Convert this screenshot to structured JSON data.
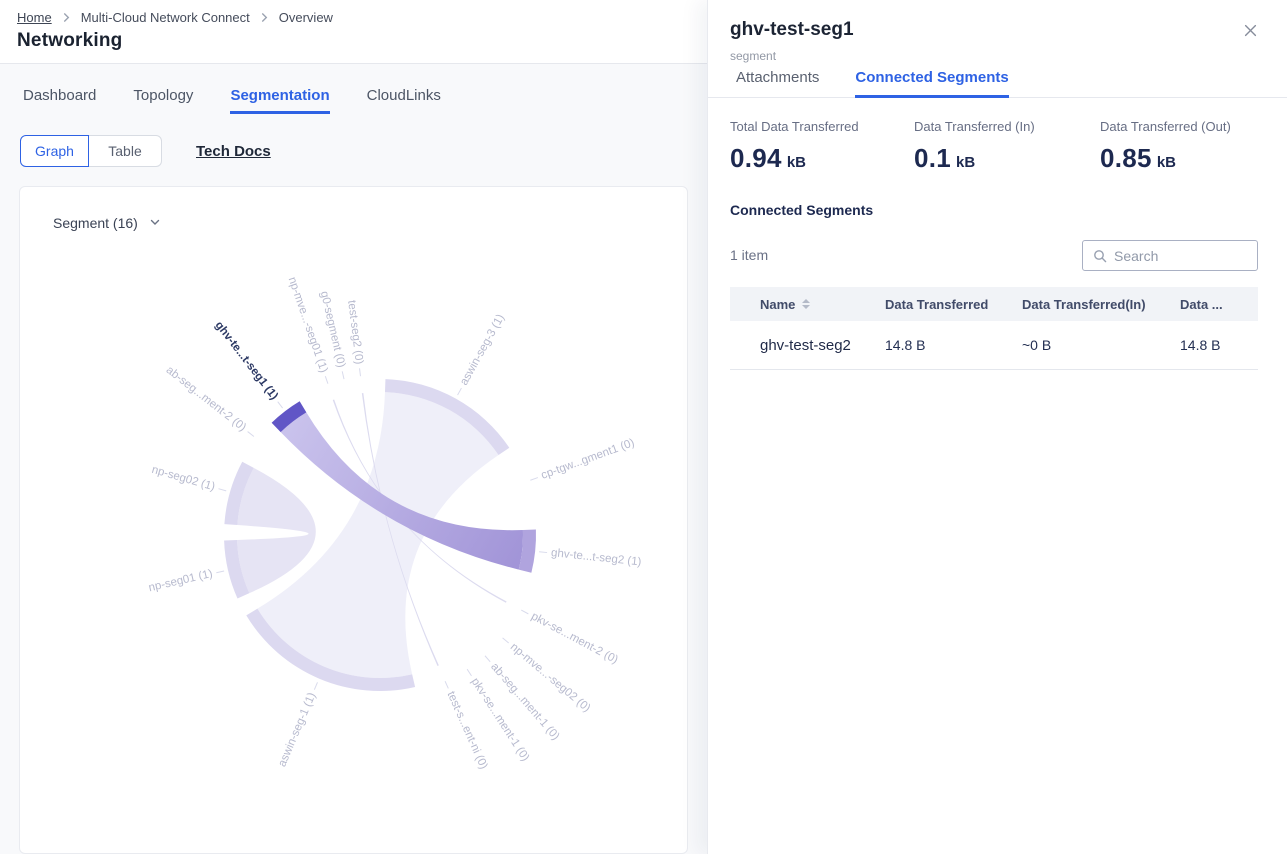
{
  "breadcrumb": {
    "items": [
      "Home",
      "Multi-Cloud Network Connect",
      "Overview"
    ]
  },
  "title": "Networking",
  "nav_tabs": [
    {
      "label": "Dashboard",
      "active": false
    },
    {
      "label": "Topology",
      "active": false
    },
    {
      "label": "Segmentation",
      "active": true
    },
    {
      "label": "CloudLinks",
      "active": false
    }
  ],
  "toolbar": {
    "view_toggle": [
      {
        "label": "Graph",
        "active": true
      },
      {
        "label": "Table",
        "active": false
      }
    ],
    "tech_docs_label": "Tech Docs"
  },
  "chart_header": {
    "segment_dropdown": "Segment (16)"
  },
  "chart_data": {
    "type": "chord",
    "title": "Segment (16)",
    "selected_segment": "ghv-te...t-seg1 (1)",
    "center": [
      360,
      348
    ],
    "outer_radius": 156,
    "inner_radius": 143,
    "tick_r1": 160,
    "tick_r2": 168,
    "label_radius": 172,
    "segments": [
      {
        "label": "aswin-seg-3 (1)",
        "start": 2,
        "end": 56,
        "state": "light"
      },
      {
        "label": "cp-tgw...gment1 (0)",
        "start": 69.5,
        "end": 70.5,
        "state": "tick"
      },
      {
        "label": "ghv-te...t-seg2 (1)",
        "start": 88,
        "end": 104,
        "state": "target"
      },
      {
        "label": "pkv-se...ment-2 (0)",
        "start": 117.5,
        "end": 118.5,
        "state": "tick"
      },
      {
        "label": "np-mve...-seg02 (0)",
        "start": 129.5,
        "end": 130.5,
        "state": "tick"
      },
      {
        "label": "ab-seg...ment-1 (0)",
        "start": 138.5,
        "end": 139.5,
        "state": "tick"
      },
      {
        "label": "pkv-se...ment-1 (0)",
        "start": 146.5,
        "end": 147.5,
        "state": "tick"
      },
      {
        "label": "test-s...ent-ni (0)",
        "start": 155.5,
        "end": 156.5,
        "state": "tick"
      },
      {
        "label": "aswin-seg-1 (1)",
        "start": 167,
        "end": 239,
        "state": "light"
      },
      {
        "label": "np-seg01 (1)",
        "start": 246,
        "end": 268,
        "state": "light"
      },
      {
        "label": "np-seg02 (1)",
        "start": 274,
        "end": 298,
        "state": "light"
      },
      {
        "label": "ab-seg...ment-2 (0)",
        "start": 307.5,
        "end": 308.5,
        "state": "tick"
      },
      {
        "label": "ghv-te...t-seg1 (1)",
        "start": 316,
        "end": 329,
        "state": "selected"
      },
      {
        "label": "np-mve...-seg01 (1)",
        "start": 340.5,
        "end": 341.5,
        "state": "tick"
      },
      {
        "label": "g0-segment (0)",
        "start": 346.5,
        "end": 347.5,
        "state": "tick"
      },
      {
        "label": "test-seg2 (0)",
        "start": 352.5,
        "end": 353.5,
        "state": "tick"
      }
    ],
    "ribbons": [
      {
        "from": [
          167,
          239
        ],
        "to": [
          2,
          56
        ],
        "color": "faint"
      },
      {
        "from": [
          246,
          268
        ],
        "to": [
          274,
          298
        ],
        "color": "sliver"
      },
      {
        "from": [
          340.7,
          341.3
        ],
        "to": [
          117.7,
          118.3
        ],
        "color": "hair"
      },
      {
        "from": [
          352.7,
          353.3
        ],
        "to": [
          155.7,
          156.3
        ],
        "color": "hair"
      },
      {
        "from": [
          316,
          329
        ],
        "to": [
          88,
          104
        ],
        "color": "main"
      }
    ],
    "colors": {
      "selected": "#6156c6",
      "target": "#b0a4de",
      "light": "#dcd9f0",
      "ribbon_from": "#c9c2ec",
      "ribbon_to": "#a295d8",
      "faint": "#efeff9",
      "sliver": "#e6e4f4",
      "hair": "#dcdbef",
      "tick": "#d9dbec",
      "label": "#b7bace",
      "label_selected": "#2c3964"
    }
  },
  "panel": {
    "title": "ghv-test-seg1",
    "subtitle": "segment",
    "tabs": [
      {
        "label": "Attachments",
        "active": false
      },
      {
        "label": "Connected Segments",
        "active": true
      }
    ],
    "stats": [
      {
        "label": "Total Data Transferred",
        "value": "0.94",
        "unit": "kB"
      },
      {
        "label": "Data Transferred (In)",
        "value": "0.1",
        "unit": "kB"
      },
      {
        "label": "Data Transferred (Out)",
        "value": "0.85",
        "unit": "kB"
      }
    ],
    "section_title": "Connected Segments",
    "item_count": "1 item",
    "search_placeholder": "Search",
    "table": {
      "columns": [
        "Name",
        "Data Transferred",
        "Data Transferred(In)",
        "Data ..."
      ],
      "rows": [
        {
          "name": "ghv-test-seg2",
          "data_transferred": "14.8 B",
          "data_in": "~0 B",
          "data_out": "14.8 B"
        }
      ]
    }
  },
  "accent_color": "#2e62e4"
}
